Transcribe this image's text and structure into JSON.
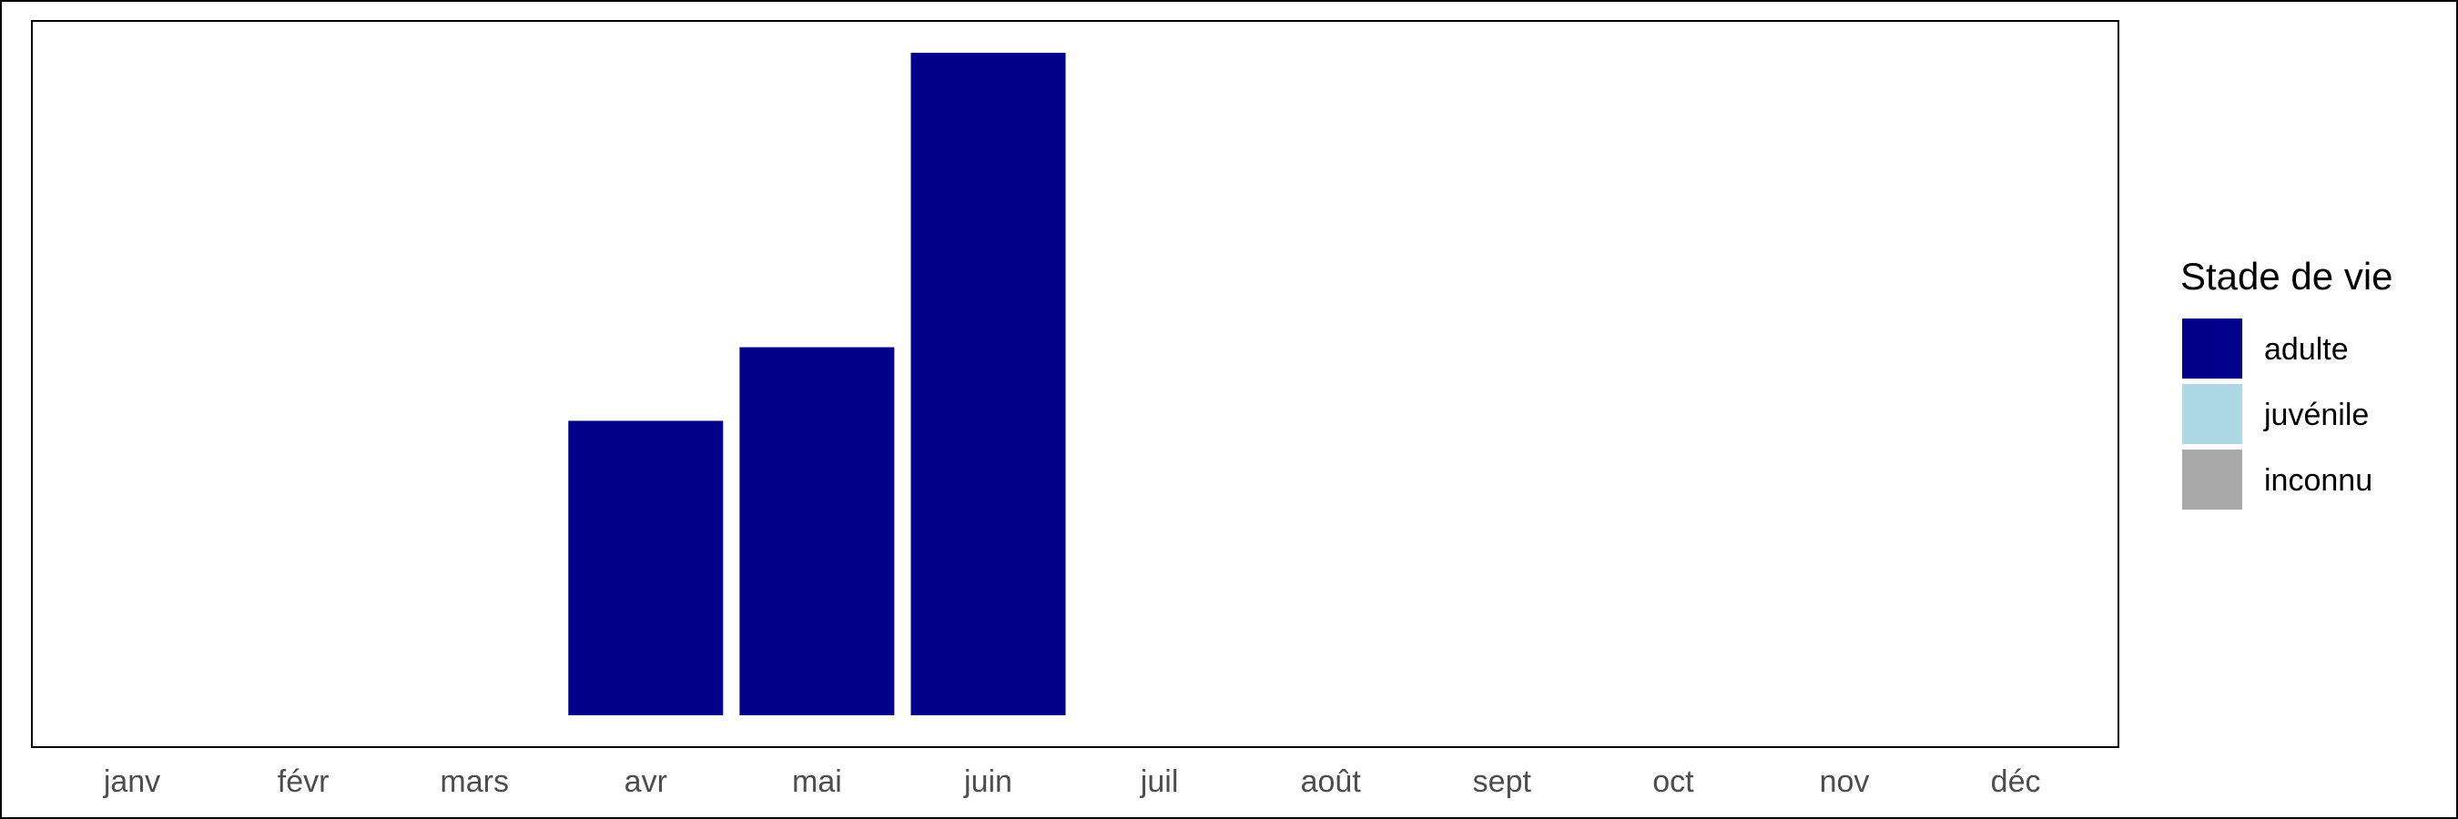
{
  "chart_data": {
    "type": "bar",
    "title": "",
    "xlabel": "",
    "ylabel": "",
    "categories": [
      "janv",
      "févr",
      "mars",
      "avr",
      "mai",
      "juin",
      "juil",
      "août",
      "sept",
      "oct",
      "nov",
      "déc"
    ],
    "series": [
      {
        "name": "adulte",
        "color": "#00008B",
        "values": [
          0,
          0,
          0,
          4,
          5,
          9,
          0,
          0,
          0,
          0,
          0,
          0
        ]
      },
      {
        "name": "juvénile",
        "color": "#ADD8E6",
        "values": [
          0,
          0,
          0,
          0,
          0,
          0,
          0,
          0,
          0,
          0,
          0,
          0
        ]
      },
      {
        "name": "inconnu",
        "color": "#A9A9A9",
        "values": [
          0,
          0,
          0,
          0,
          0,
          0,
          0,
          0,
          0,
          0,
          0,
          0
        ]
      }
    ],
    "stacked": true,
    "ylim": [
      0,
      9
    ],
    "grid": false,
    "y_axis_shown": false,
    "legend": {
      "title": "Stade de vie",
      "position": "right",
      "entries": [
        "adulte",
        "juvénile",
        "inconnu"
      ]
    }
  }
}
